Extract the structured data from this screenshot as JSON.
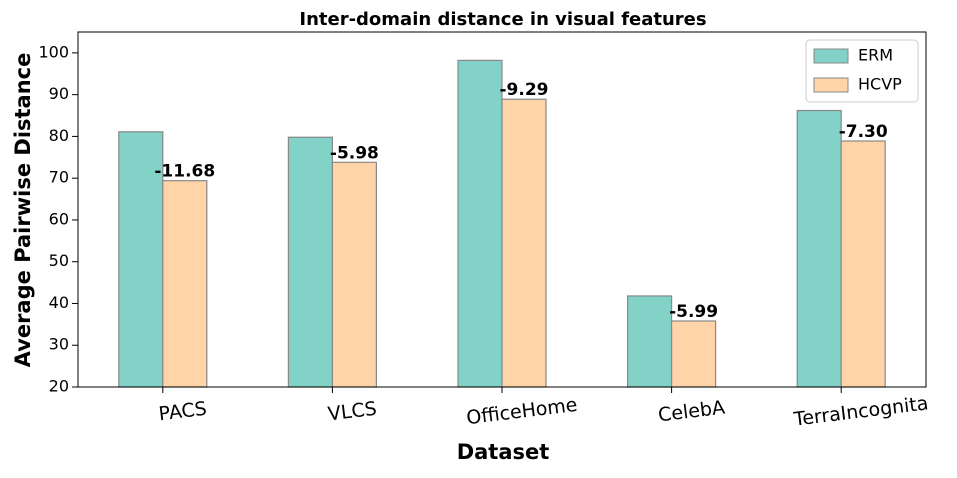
{
  "chart_data": {
    "type": "bar",
    "title": "Inter-domain distance in visual features",
    "x_label": "Dataset",
    "y_label": "Average Pairwise Distance",
    "categories": [
      "PACS",
      "VLCS",
      "OfficeHome",
      "CelebA",
      "TerraIncognita"
    ],
    "series": [
      {
        "name": "ERM",
        "color": "#82d2c8",
        "values": [
          81.1,
          79.8,
          98.2,
          41.8,
          86.2
        ]
      },
      {
        "name": "HCVP",
        "color": "#ffd4a8",
        "values": [
          69.4,
          73.8,
          88.9,
          35.8,
          78.9
        ]
      }
    ],
    "annotations": [
      "-11.68",
      "-5.98",
      "-9.29",
      "-5.99",
      "-7.30"
    ],
    "ylim": [
      20,
      105
    ],
    "yticks": [
      20,
      30,
      40,
      50,
      60,
      70,
      80,
      90,
      100
    ],
    "legend": "upper-right"
  }
}
